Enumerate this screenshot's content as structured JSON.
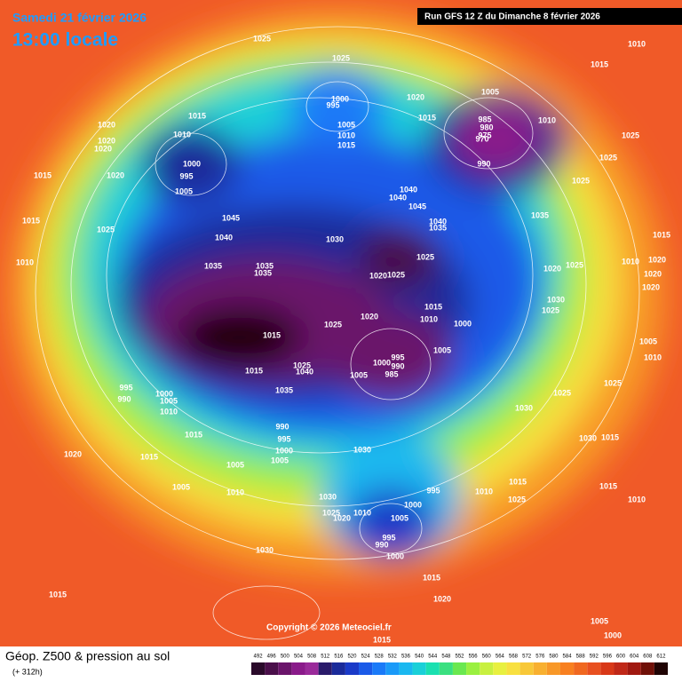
{
  "header": {
    "valid_time": "Samedi 21 février 2026",
    "local_time": "13:00 locale",
    "run": "Run GFS 12 Z du Dimanche 8 février 2026"
  },
  "map": {
    "copyright": "Copyright © 2026 Meteociel.fr",
    "pressure_labels": [
      1025,
      1025,
      1005,
      1020,
      1000,
      995,
      1005,
      1010,
      1015,
      1015,
      985,
      980,
      975,
      970,
      1010,
      1015,
      1010,
      1020,
      1020,
      1020,
      1000,
      995,
      1005,
      1020,
      1015,
      990,
      1025,
      1025,
      1025,
      1040,
      1040,
      1045,
      1045,
      1025,
      1015,
      1040,
      1035,
      1035,
      1040,
      1030,
      1015,
      1010,
      1035,
      1035,
      1035,
      1025,
      1020,
      1025,
      1020,
      1025,
      1010,
      1020,
      1020,
      1020,
      1015,
      1010,
      1020,
      1025,
      1000,
      1030,
      1025,
      1015,
      1005,
      995,
      1000,
      990,
      985,
      1005,
      1015,
      1025,
      1040,
      1035,
      995,
      990,
      1000,
      1005,
      1010,
      1015,
      990,
      995,
      1000,
      1005,
      1030,
      1030,
      1025,
      1025,
      1005,
      1010,
      1030,
      1015,
      1020,
      1015,
      1005,
      1005,
      1010,
      995,
      1000,
      1005,
      1010,
      1015,
      1025,
      1015,
      1010,
      1030,
      1025,
      1020,
      1010,
      995,
      990,
      1000,
      1030,
      1015,
      1015,
      1020,
      1005,
      1000,
      1015,
      1010,
      1015
    ]
  },
  "footer": {
    "title": "Géop. Z500 & pression au sol",
    "lead": "(+ 312h)",
    "scale": {
      "levels": [
        492,
        496,
        500,
        504,
        508,
        512,
        516,
        520,
        524,
        528,
        532,
        536,
        540,
        544,
        548,
        552,
        556,
        560,
        564,
        568,
        572,
        576,
        580,
        584,
        588,
        592,
        596,
        600,
        604,
        608,
        612
      ],
      "colors": [
        "#2a0a2a",
        "#4a0f4a",
        "#6a146a",
        "#8a1a8a",
        "#9a2a9a",
        "#2a1a6a",
        "#1a2a9a",
        "#1a3ac8",
        "#1a5ae8",
        "#1a7af8",
        "#1a9af8",
        "#1ab8f0",
        "#1ad0d8",
        "#1ae0b0",
        "#3ae080",
        "#6ae850",
        "#9af040",
        "#c8f040",
        "#e8f040",
        "#f8e040",
        "#f8c838",
        "#f8b030",
        "#f89828",
        "#f88020",
        "#f06820",
        "#e85020",
        "#d83818",
        "#c02818",
        "#a01810",
        "#701008",
        "#200404"
      ]
    }
  }
}
